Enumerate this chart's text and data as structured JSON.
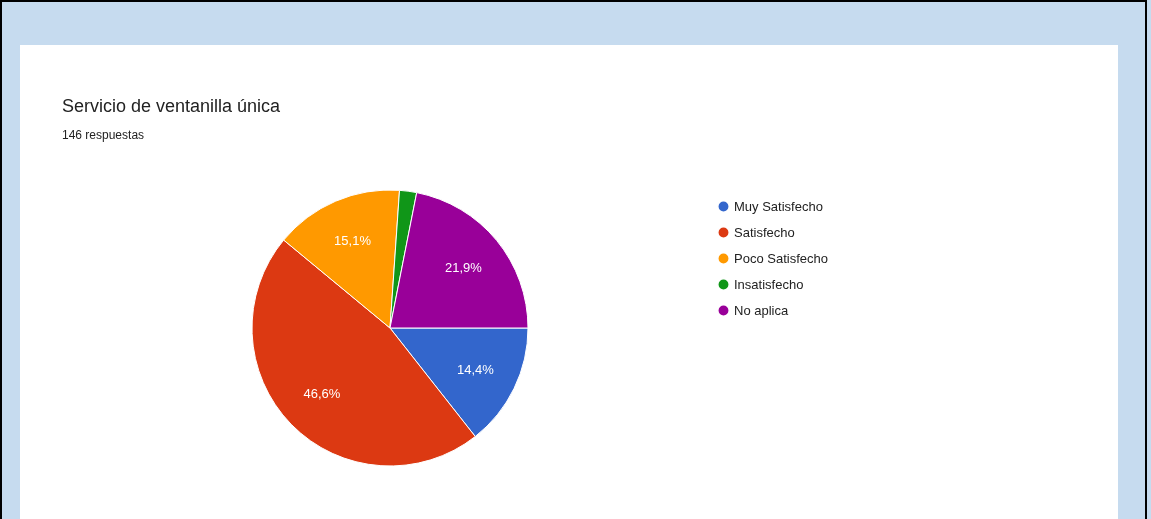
{
  "chart_data": {
    "type": "pie",
    "title": "Servicio de ventanilla única",
    "subtitle": "146 respuestas",
    "categories": [
      "Muy Satisfecho",
      "Satisfecho",
      "Poco Satisfecho",
      "Insatisfecho",
      "No aplica"
    ],
    "values": [
      14.4,
      46.6,
      15.1,
      2.0,
      21.9
    ],
    "colors": [
      "#3366cc",
      "#dc3912",
      "#ff9900",
      "#109618",
      "#990099"
    ],
    "value_labels": [
      "14,4%",
      "46,6%",
      "15,1%",
      null,
      "21,9%"
    ],
    "legend": "right"
  }
}
